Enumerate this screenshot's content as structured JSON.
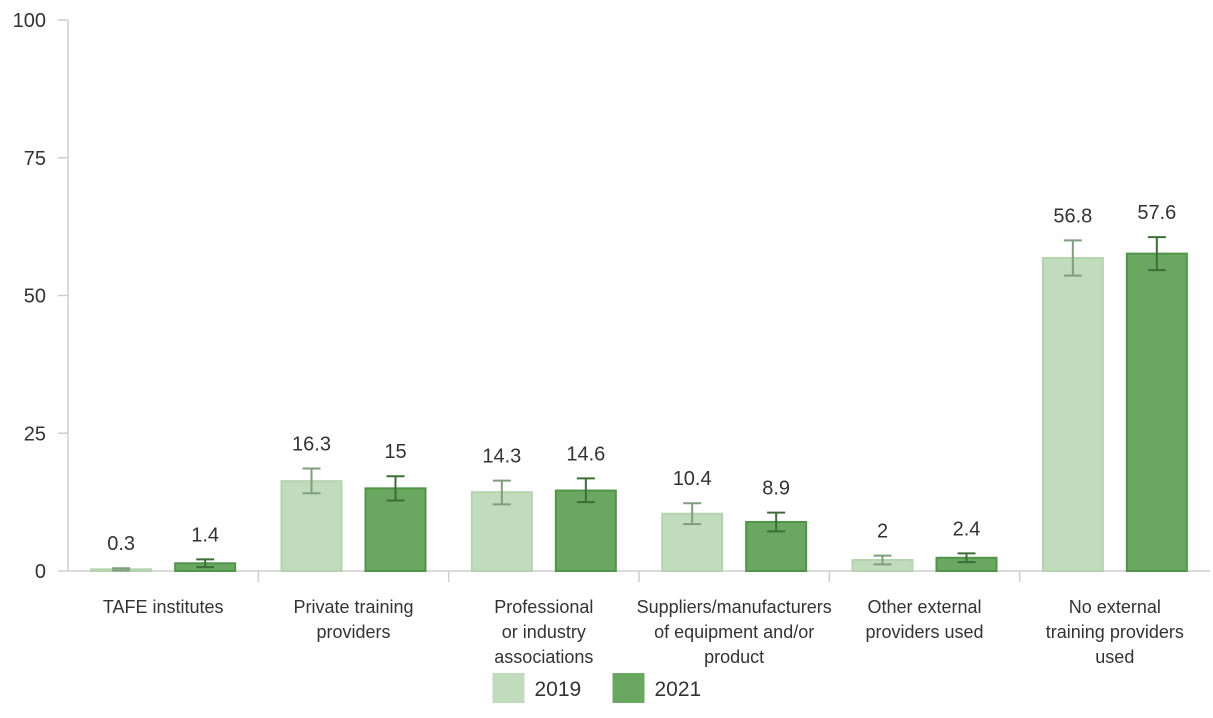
{
  "chart_data": {
    "type": "bar",
    "categories": [
      [
        "TAFE institutes"
      ],
      [
        "Private training",
        "providers"
      ],
      [
        "Professional",
        "or industry",
        "associations"
      ],
      [
        "Suppliers/manufacturers",
        "of equipment and/or",
        "product"
      ],
      [
        "Other external",
        "providers used"
      ],
      [
        "No external",
        "training providers",
        "used"
      ]
    ],
    "series": [
      {
        "name": "2019",
        "color": "#c1dcbc",
        "stroke": "#b3d4ad",
        "error_color": "#7f9e7b",
        "values": [
          0.3,
          16.3,
          14.3,
          10.4,
          2,
          56.8
        ],
        "labels": [
          "0.3",
          "16.3",
          "14.3",
          "10.4",
          "2",
          "56.8"
        ],
        "error_low": [
          0.1,
          14.1,
          12.1,
          8.5,
          1.2,
          53.6
        ],
        "error_high": [
          0.5,
          18.6,
          16.4,
          12.3,
          2.8,
          60.0
        ]
      },
      {
        "name": "2021",
        "color": "#6aa862",
        "stroke": "#4f9447",
        "error_color": "#3d6e37",
        "values": [
          1.4,
          15,
          14.6,
          8.9,
          2.4,
          57.6
        ],
        "labels": [
          "1.4",
          "15",
          "14.6",
          "8.9",
          "2.4",
          "57.6"
        ],
        "error_low": [
          0.7,
          12.8,
          12.5,
          7.2,
          1.6,
          54.6
        ],
        "error_high": [
          2.1,
          17.2,
          16.8,
          10.6,
          3.2,
          60.6
        ]
      }
    ],
    "y_ticks": [
      "0",
      "25",
      "50",
      "75",
      "100"
    ],
    "ylim": [
      0,
      100
    ],
    "grid": false,
    "legend_position": "bottom-center"
  }
}
